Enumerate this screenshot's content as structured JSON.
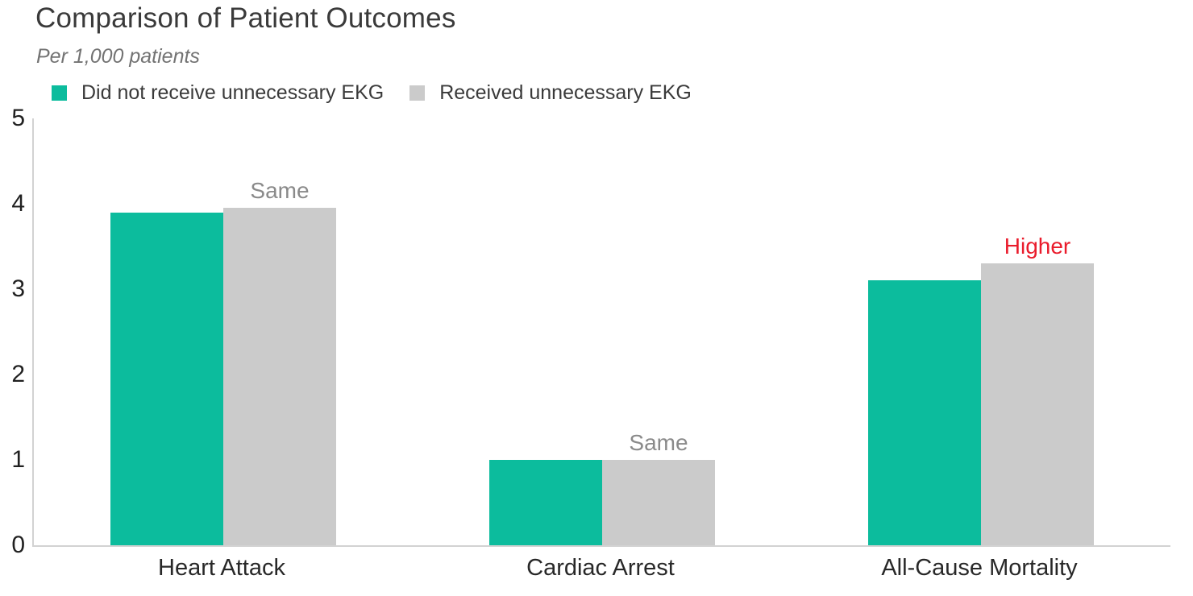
{
  "title": "Comparison of Patient Outcomes",
  "subtitle": "Per 1,000 patients",
  "legend": {
    "items": [
      {
        "label": "Did not receive unnecessary EKG",
        "color": "#0cbc9d"
      },
      {
        "label": "Received unnecessary EKG",
        "color": "#cbcbcb"
      }
    ]
  },
  "colors": {
    "series_no_ekg": "#0cbc9d",
    "series_ekg": "#cbcbcb",
    "annotation_same": "#8a8a8a",
    "annotation_higher": "#ea1c2c",
    "axis_line": "#d2d2d2"
  },
  "chart_data": {
    "type": "bar",
    "title": "Comparison of Patient Outcomes",
    "subtitle": "Per 1,000 patients",
    "categories": [
      "Heart Attack",
      "Cardiac Arrest",
      "All-Cause Mortality"
    ],
    "series": [
      {
        "name": "Did not receive unnecessary EKG",
        "color": "#0cbc9d",
        "values": [
          3.9,
          1.0,
          3.1
        ]
      },
      {
        "name": "Received unnecessary EKG",
        "color": "#cbcbcb",
        "values": [
          3.95,
          1.0,
          3.3
        ]
      }
    ],
    "annotations": [
      {
        "category": "Heart Attack",
        "text": "Same",
        "color": "#8a8a8a"
      },
      {
        "category": "Cardiac Arrest",
        "text": "Same",
        "color": "#8a8a8a"
      },
      {
        "category": "All-Cause Mortality",
        "text": "Higher",
        "color": "#ea1c2c"
      }
    ],
    "xlabel": "",
    "ylabel": "",
    "ylim": [
      0,
      5
    ],
    "yticks": [
      0,
      1,
      2,
      3,
      4,
      5
    ],
    "grid": false,
    "legend_position": "top-left"
  }
}
